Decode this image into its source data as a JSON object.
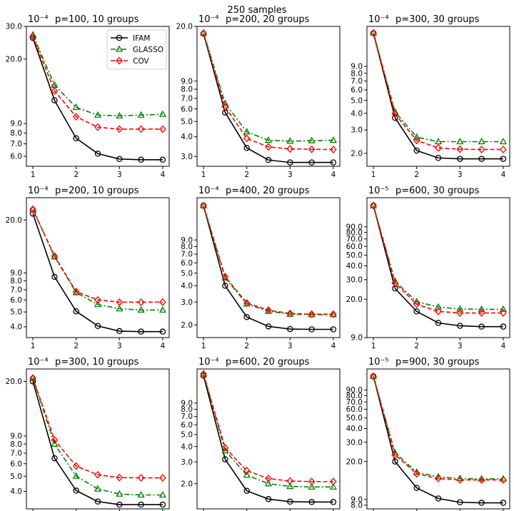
{
  "colors": {
    "IFAM": "#000000",
    "GLASSO": "#008000",
    "COV": "#ff0000"
  },
  "chart_data": {
    "type": "line",
    "suptitle": "250 samples",
    "legend": {
      "placement": "top-right",
      "panel": 0,
      "entries": [
        "IFAM",
        "GLASSO",
        "COV"
      ]
    },
    "styles": {
      "IFAM": {
        "color": "#000000",
        "dash": "solid",
        "marker": "circle"
      },
      "GLASSO": {
        "color": "#008000",
        "dash": "dashdot",
        "marker": "triangle"
      },
      "COV": {
        "color": "#ff0000",
        "dash": "dashed",
        "marker": "diamond"
      }
    },
    "x": [
      1,
      1.5,
      2,
      2.5,
      3,
      3.5,
      4
    ],
    "x_ticks": [
      1,
      2,
      3,
      4
    ],
    "y_scale": "log",
    "panels": [
      {
        "title": "p=100, 10 groups",
        "exponent": "10⁻⁴",
        "ylim": [
          5.3,
          30
        ],
        "yticks": [
          6,
          7,
          8,
          9,
          20,
          30
        ],
        "ytick_labels": [
          "6.0",
          "7.0",
          "8.0",
          "9.0",
          "20.0",
          "30.0"
        ],
        "series": [
          {
            "name": "IFAM",
            "values": [
              26.0,
              12.0,
              7.5,
              6.2,
              5.8,
              5.75,
              5.75
            ]
          },
          {
            "name": "GLASSO",
            "values": [
              27.0,
              14.5,
              11.0,
              10.0,
              9.9,
              10.0,
              10.1
            ]
          },
          {
            "name": "COV",
            "values": [
              26.5,
              13.5,
              9.8,
              8.6,
              8.4,
              8.4,
              8.4
            ]
          }
        ]
      },
      {
        "title": "p=200, 20 groups",
        "exponent": "10⁻⁴",
        "ylim": [
          2.6,
          20
        ],
        "yticks": [
          3,
          4,
          5,
          6,
          7,
          8,
          9,
          20
        ],
        "ytick_labels": [
          "3.0",
          "4.0",
          "5.0",
          "6.0",
          "7.0",
          "8.0",
          "9.0",
          "20.0"
        ],
        "series": [
          {
            "name": "IFAM",
            "values": [
              18.0,
              5.7,
              3.4,
              2.85,
              2.75,
              2.75,
              2.75
            ]
          },
          {
            "name": "GLASSO",
            "values": [
              18.2,
              6.5,
              4.3,
              3.8,
              3.75,
              3.78,
              3.8
            ]
          },
          {
            "name": "COV",
            "values": [
              18.1,
              6.2,
              3.9,
              3.45,
              3.35,
              3.33,
              3.32
            ]
          }
        ]
      },
      {
        "title": "p=300, 30 groups",
        "exponent": "10⁻⁴",
        "ylim": [
          1.6,
          18
        ],
        "yticks": [
          2,
          3,
          4,
          5,
          6,
          7,
          8,
          9
        ],
        "ytick_labels": [
          "2.0",
          "3.0",
          "4.0",
          "5.0",
          "6.0",
          "7.0",
          "8.0",
          "9.0"
        ],
        "series": [
          {
            "name": "IFAM",
            "values": [
              16.0,
              3.7,
              2.1,
              1.85,
              1.82,
              1.82,
              1.82
            ]
          },
          {
            "name": "GLASSO",
            "values": [
              16.1,
              4.1,
              2.65,
              2.45,
              2.45,
              2.45,
              2.45
            ]
          },
          {
            "name": "COV",
            "values": [
              16.05,
              3.95,
              2.5,
              2.2,
              2.15,
              2.14,
              2.14
            ]
          }
        ]
      },
      {
        "title": "p=200, 10 groups",
        "exponent": "10⁻⁴",
        "ylim": [
          3.4,
          28
        ],
        "yticks": [
          4,
          5,
          6,
          7,
          8,
          9,
          20
        ],
        "ytick_labels": [
          "4.0",
          "5.0",
          "6.0",
          "7.0",
          "8.0",
          "9.0",
          "20.0"
        ],
        "series": [
          {
            "name": "IFAM",
            "values": [
              22.0,
              8.5,
              5.05,
              4.05,
              3.75,
              3.72,
              3.72
            ]
          },
          {
            "name": "GLASSO",
            "values": [
              23.5,
              11.5,
              6.7,
              5.6,
              5.25,
              5.15,
              5.15
            ]
          },
          {
            "name": "COV",
            "values": [
              23.5,
              11.6,
              6.8,
              6.0,
              5.8,
              5.8,
              5.8
            ]
          }
        ]
      },
      {
        "title": "p=400, 20 groups",
        "exponent": "10⁻⁴",
        "ylim": [
          1.6,
          19
        ],
        "yticks": [
          2,
          3,
          4,
          5,
          6,
          7,
          8,
          9
        ],
        "ytick_labels": [
          "2.0",
          "3.0",
          "4.0",
          "5.0",
          "6.0",
          "7.0",
          "8.0",
          "9.0"
        ],
        "series": [
          {
            "name": "IFAM",
            "values": [
              16.5,
              4.0,
              2.3,
              1.95,
              1.86,
              1.85,
              1.85
            ]
          },
          {
            "name": "GLASSO",
            "values": [
              16.5,
              4.6,
              2.9,
              2.55,
              2.42,
              2.4,
              2.4
            ]
          },
          {
            "name": "COV",
            "values": [
              16.5,
              4.7,
              2.95,
              2.6,
              2.45,
              2.42,
              2.42
            ]
          }
        ]
      },
      {
        "title": "p=600, 30 groups",
        "exponent": "10⁻⁵",
        "ylim": [
          9,
          165
        ],
        "yticks": [
          9,
          20,
          30,
          40,
          50,
          60,
          70,
          80,
          90
        ],
        "ytick_labels": [
          "9.0",
          "20.0",
          "30.0",
          "40.0",
          "50.0",
          "60.0",
          "70.0",
          "80.0",
          "90.0"
        ],
        "series": [
          {
            "name": "IFAM",
            "values": [
              140,
              25,
              15.5,
              12.2,
              11.5,
              11.3,
              11.3
            ]
          },
          {
            "name": "GLASSO",
            "values": [
              140,
              29,
              19.0,
              17.0,
              16.3,
              16.2,
              16.2
            ]
          },
          {
            "name": "COV",
            "values": [
              140,
              28,
              18.0,
              15.5,
              15.0,
              15.0,
              15.0
            ]
          }
        ]
      },
      {
        "title": "p=300, 10 groups",
        "exponent": "10⁻⁴",
        "ylim": [
          3.1,
          24
        ],
        "yticks": [
          4,
          5,
          6,
          7,
          8,
          9,
          20
        ],
        "ytick_labels": [
          "4.0",
          "5.0",
          "6.0",
          "7.0",
          "8.0",
          "9.0",
          "20.0"
        ],
        "series": [
          {
            "name": "IFAM",
            "values": [
              20.0,
              6.5,
              4.05,
              3.45,
              3.3,
              3.3,
              3.3
            ]
          },
          {
            "name": "GLASSO",
            "values": [
              21.0,
              8.0,
              5.0,
              4.15,
              3.85,
              3.8,
              3.8
            ]
          },
          {
            "name": "COV",
            "values": [
              21.0,
              8.5,
              5.8,
              5.1,
              4.9,
              4.88,
              4.88
            ]
          }
        ]
      },
      {
        "title": "p=600, 20 groups",
        "exponent": "10⁻⁴",
        "ylim": [
          1.25,
          17
        ],
        "yticks": [
          2,
          3,
          4,
          5,
          6,
          7,
          8,
          9
        ],
        "ytick_labels": [
          "2.0",
          "3.0",
          "4.0",
          "5.0",
          "6.0",
          "7.0",
          "8.0",
          "9.0"
        ],
        "series": [
          {
            "name": "IFAM",
            "values": [
              15.0,
              3.15,
              1.75,
              1.5,
              1.43,
              1.42,
              1.42
            ]
          },
          {
            "name": "GLASSO",
            "values": [
              15.5,
              3.7,
              2.35,
              2.0,
              1.9,
              1.88,
              1.88
            ]
          },
          {
            "name": "COV",
            "values": [
              15.5,
              3.9,
              2.55,
              2.2,
              2.1,
              2.08,
              2.08
            ]
          }
        ]
      },
      {
        "title": "p=900, 30 groups",
        "exponent": "10⁻⁵",
        "ylim": [
          7.4,
          140
        ],
        "yticks": [
          8,
          9,
          20,
          30,
          40,
          50,
          60,
          70,
          80,
          90
        ],
        "ytick_labels": [
          "8.0",
          "9.0",
          "20.0",
          "30.0",
          "40.0",
          "50.0",
          "60.0",
          "70.0",
          "80.0",
          "90.0"
        ],
        "series": [
          {
            "name": "IFAM",
            "values": [
              120,
              20,
              11.5,
              9.2,
              8.5,
              8.4,
              8.4
            ]
          },
          {
            "name": "GLASSO",
            "values": [
              120,
              24,
              16.0,
              14.5,
              14.0,
              13.9,
              13.9
            ]
          },
          {
            "name": "COV",
            "values": [
              120,
              23,
              15.5,
              14.0,
              13.6,
              13.6,
              13.6
            ]
          }
        ]
      }
    ]
  }
}
